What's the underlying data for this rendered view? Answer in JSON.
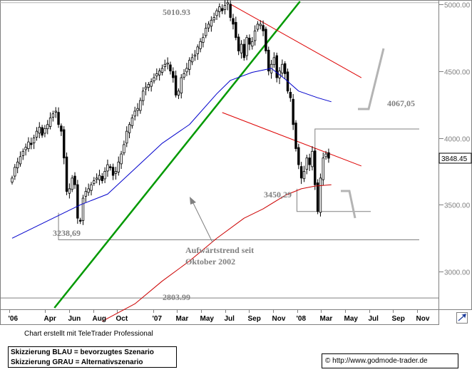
{
  "chart_data": {
    "type": "candlestick",
    "title": "",
    "xlabel": "",
    "ylabel": "",
    "y_axis_ticks": [
      "3000.00",
      "3500.00",
      "4000.00",
      "4500.00",
      "5000.00"
    ],
    "y_tick_values": [
      3000,
      3500,
      4000,
      4500,
      5000
    ],
    "ylim": [
      2730,
      5020
    ],
    "x_tick_labels": [
      "'06",
      "Apr",
      "Jun",
      "Aug",
      "Oct",
      "'07",
      "Mar",
      "May",
      "Jul",
      "Sep",
      "Nov",
      "'08",
      "Mar",
      "May",
      "Jul",
      "Sep",
      "Nov"
    ],
    "x_tick_dates": [
      "2006-01",
      "2006-04",
      "2006-06",
      "2006-08",
      "2006-10",
      "2007-01",
      "2007-03",
      "2007-05",
      "2007-07",
      "2007-09",
      "2007-11",
      "2008-01",
      "2008-03",
      "2008-05",
      "2008-07",
      "2008-09",
      "2008-11"
    ],
    "current_price": "3848.45",
    "current_price_value": 3848.45,
    "weekly_closes": [
      3700,
      3780,
      3820,
      3860,
      3900,
      3930,
      3970,
      3950,
      4000,
      4050,
      4080,
      4020,
      4070,
      4100,
      4150,
      4180,
      4200,
      4100,
      4050,
      3850,
      3600,
      3620,
      3700,
      3650,
      3400,
      3380,
      3550,
      3600,
      3620,
      3650,
      3680,
      3700,
      3720,
      3680,
      3750,
      3800,
      3780,
      3720,
      3750,
      3820,
      3880,
      3950,
      4050,
      4100,
      4150,
      4200,
      4220,
      4280,
      4350,
      4380,
      4400,
      4420,
      4450,
      4480,
      4500,
      4520,
      4550,
      4560,
      4500,
      4450,
      4320,
      4350,
      4450,
      4480,
      4520,
      4580,
      4600,
      4620,
      4680,
      4720,
      4750,
      4820,
      4850,
      4880,
      4900,
      4950,
      4980,
      4950,
      4990,
      5010.93,
      4900,
      4850,
      4750,
      4650,
      4700,
      4600,
      4750,
      4700,
      4720,
      4800,
      4850,
      4850,
      4800,
      4650,
      4500,
      4550,
      4600,
      4450,
      4500,
      4550,
      4480,
      4350,
      4300,
      4100,
      3920,
      3800,
      3700,
      3750,
      3850,
      3800,
      3900,
      3650,
      3450.29,
      3700,
      3850,
      3880,
      3848.45
    ],
    "ma_long_anchors": [
      [
        0,
        3250
      ],
      [
        17,
        3420
      ],
      [
        25,
        3500
      ],
      [
        35,
        3580
      ],
      [
        45,
        3770
      ],
      [
        55,
        3960
      ],
      [
        65,
        4100
      ],
      [
        75,
        4330
      ],
      [
        80,
        4430
      ],
      [
        88,
        4490
      ],
      [
        95,
        4520
      ],
      [
        100,
        4440
      ],
      [
        105,
        4350
      ],
      [
        112,
        4300
      ],
      [
        117,
        4270
      ]
    ],
    "ma_short_anchors": [
      [
        33,
        2630
      ],
      [
        45,
        2760
      ],
      [
        55,
        2930
      ],
      [
        65,
        3080
      ],
      [
        75,
        3250
      ],
      [
        85,
        3400
      ],
      [
        92,
        3470
      ],
      [
        100,
        3570
      ],
      [
        106,
        3620
      ],
      [
        111,
        3640
      ],
      [
        117,
        3650
      ]
    ],
    "trend_up_line": [
      [
        15.5,
        2730
      ],
      [
        105.5,
        5020
      ]
    ],
    "channel_upper_line": [
      [
        80,
        5000
      ],
      [
        128,
        4450
      ]
    ],
    "channel_lower_line": [
      [
        77,
        4190
      ],
      [
        128,
        3790
      ]
    ],
    "level_5010": 5010.93,
    "level_4067": 4067.05,
    "level_3450": 3450.29,
    "level_3238": 3238.69,
    "level_2803": 2803.99,
    "annotations": {
      "high_5010": "5010.93",
      "level_4067": "4067,05",
      "level_3450": "3450,29",
      "level_3238": "3238,69",
      "level_2803": "2803.99",
      "uptrend_line1": "Aufwärtstrend seit",
      "uptrend_line2": "Oktober 2002"
    },
    "colors": {
      "candle_up": "#ffffff",
      "candle_down": "#000000",
      "ma_long": "#0000cc",
      "ma_short": "#cc0000",
      "trend_green": "#009900",
      "channel_red": "#dd0000",
      "support_grey": "#808080",
      "scenario_grey": "#b4b4b4"
    }
  },
  "footer": {
    "credit": "Chart erstellt mit TeleTrader Professional",
    "legend_blue": "Skizzierung BLAU = bevorzugtes Szenario",
    "legend_grey": "Skizzierung GRAU = Alternativszenario",
    "copyright_symbol": "©",
    "copyright_url": "http://www.godmode-trader.de"
  }
}
